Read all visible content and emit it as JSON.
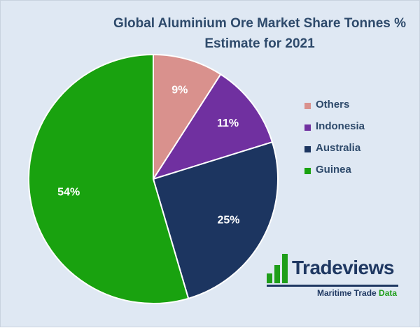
{
  "title_line1": "Global Aluminium Ore Market Share Tonnes %",
  "title_line2": "Estimate for 2021",
  "chart_data": {
    "type": "pie",
    "title": "Global Aluminium Ore Market Share Tonnes % Estimate for 2021",
    "slices": [
      {
        "label": "Others",
        "value": 9,
        "display": "9%",
        "color": "#d9918d",
        "text_color": "#ffffff"
      },
      {
        "label": "Indonesia",
        "value": 11,
        "display": "11%",
        "color": "#7030a0",
        "text_color": "#ffffff"
      },
      {
        "label": "Australia",
        "value": 25,
        "display": "25%",
        "color": "#1c3560",
        "text_color": "#ffffff"
      },
      {
        "label": "Guinea",
        "value": 54,
        "display": "54%",
        "color": "#19a20f",
        "text_color": "#ffffff"
      }
    ],
    "start_angle": "top (12 o'clock)",
    "direction": "clockwise",
    "legend_position": "right"
  },
  "logo": {
    "name": "Tradeviews",
    "sub_part1": "Maritime Trade ",
    "sub_part2": "Data",
    "name_color": "#1f3862",
    "accent_color": "#1f9e1a"
  }
}
